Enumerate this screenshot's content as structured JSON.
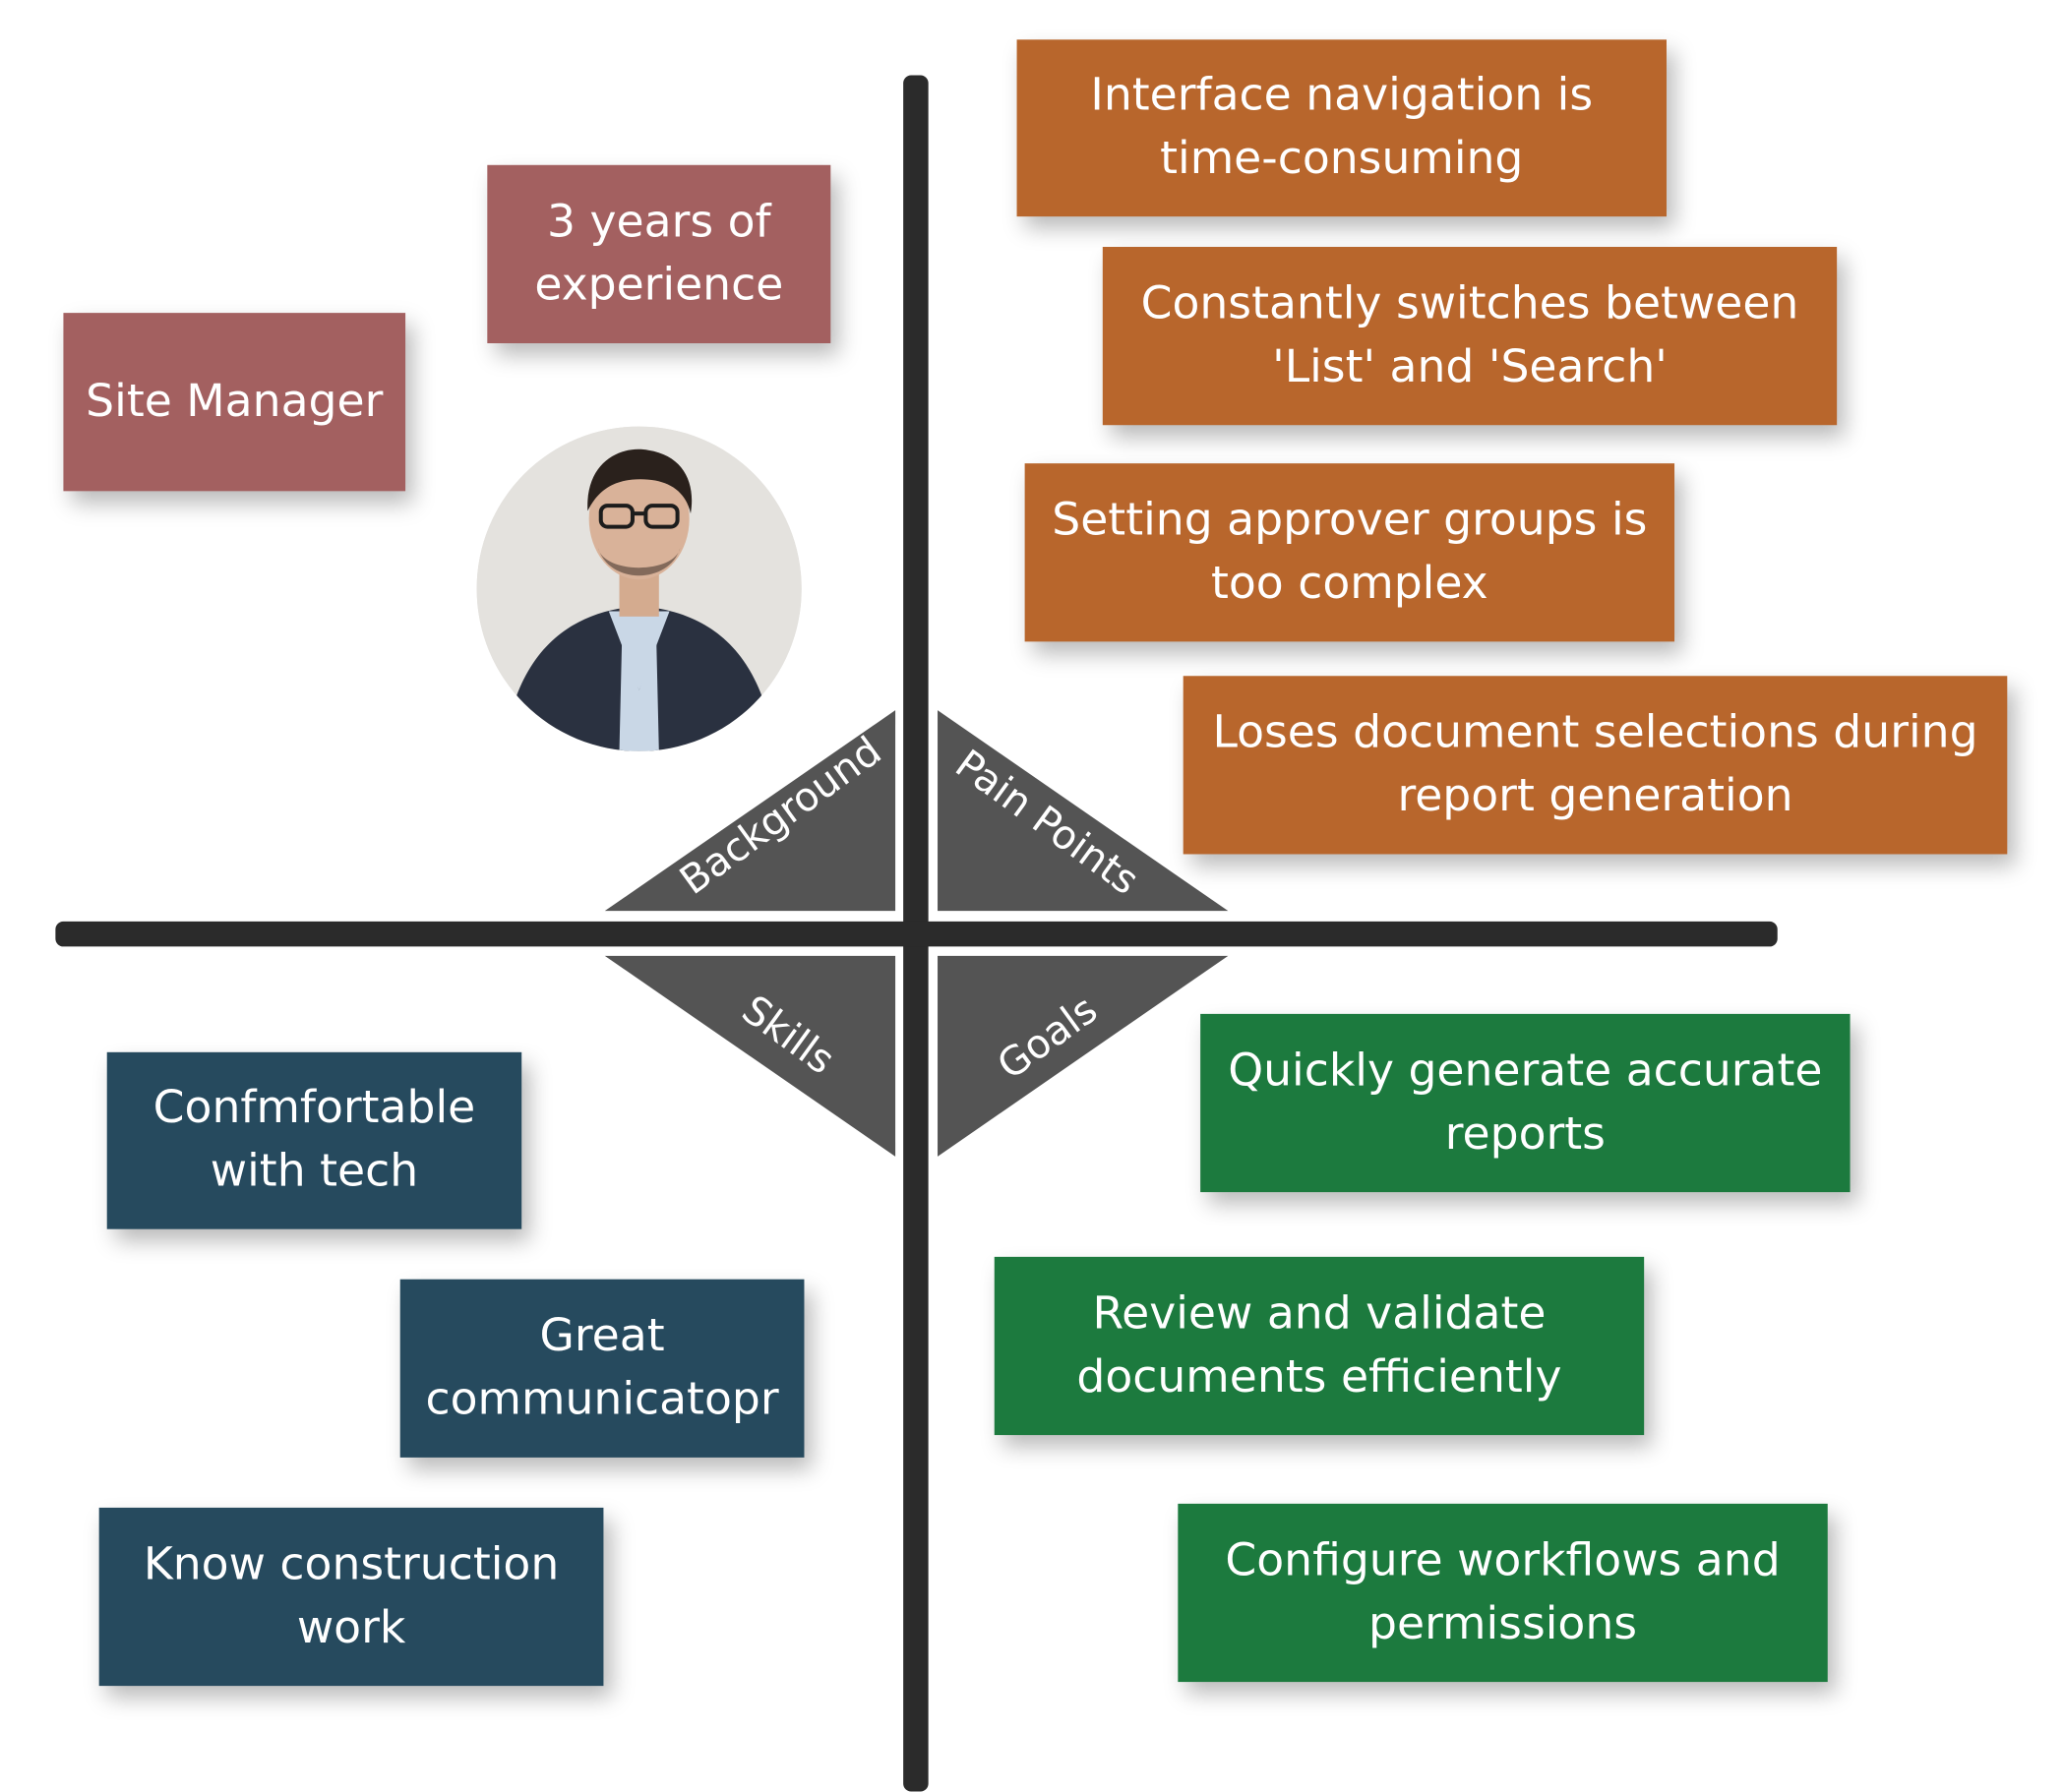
{
  "quadrants": {
    "background": "Background",
    "pain_points": "Pain Points",
    "skills": "Skills",
    "goals": "Goals"
  },
  "background": {
    "items": [
      "Site Manager",
      "3 years of experience"
    ]
  },
  "pain_points": {
    "items": [
      "Interface navigation is time-consuming",
      "Constantly switches between 'List' and 'Search'",
      "Setting approver groups is too complex",
      "Loses document selections during report generation"
    ]
  },
  "skills": {
    "items": [
      "Confmfortable with tech",
      "Great communicatopr",
      "Know construction work"
    ]
  },
  "goals": {
    "items": [
      "Quickly generate accurate reports",
      "Review and validate documents efficiently",
      "Configure workflows and permissions"
    ]
  },
  "colors": {
    "background": "#a36060",
    "pain_points": "#b8662c",
    "skills": "#264a5e",
    "goals": "#1c7a3e",
    "label_triangle": "#545454",
    "axis": "#2b2b2b"
  },
  "icons": {
    "avatar": "persona-photo"
  }
}
